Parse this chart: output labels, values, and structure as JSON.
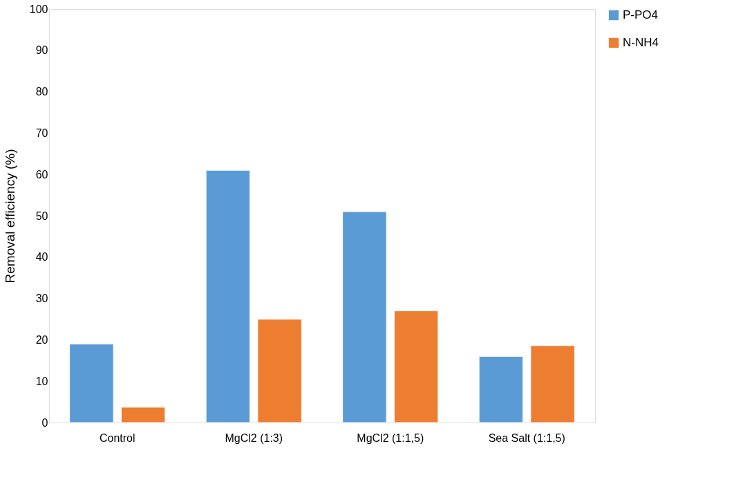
{
  "chart_data": {
    "type": "bar",
    "ylabel": "Removal efficiency (%)",
    "categories": [
      "Control",
      "MgCl2 (1:3)",
      "MgCl2  (1:1,5)",
      "Sea Salt (1:1,5)"
    ],
    "series": [
      {
        "name": "P-PO4",
        "color": "#5b9bd5",
        "values": [
          19,
          61,
          51,
          16
        ]
      },
      {
        "name": "N-NH4",
        "color": "#ed7d31",
        "values": [
          3.7,
          25,
          27,
          18.6
        ]
      }
    ],
    "ylim": [
      0,
      100
    ],
    "yticks": [
      0,
      10,
      20,
      30,
      40,
      50,
      60,
      70,
      80,
      90,
      100
    ],
    "grid": false,
    "legend": "right"
  }
}
